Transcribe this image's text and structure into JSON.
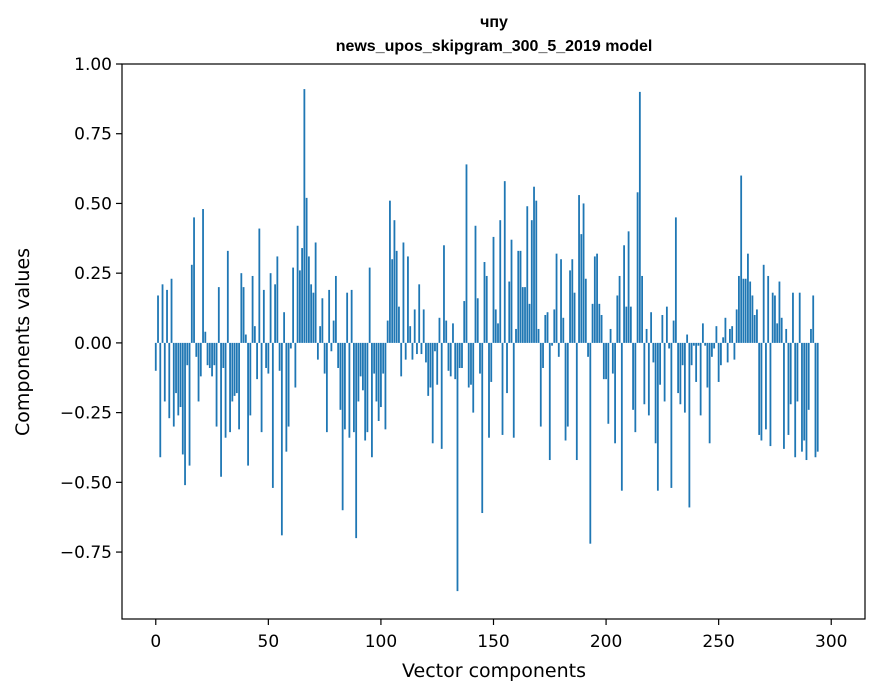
{
  "chart_data": {
    "type": "bar",
    "title": "чпу",
    "subtitle": "news_upos_skipgram_300_5_2019 model",
    "xlabel": "Vector components",
    "ylabel": "Components values",
    "xlim": [
      -15,
      315
    ],
    "ylim": [
      -0.99,
      1.0
    ],
    "xticks": [
      0,
      50,
      100,
      150,
      200,
      250,
      300
    ],
    "yticks": [
      1.0,
      0.75,
      0.5,
      0.25,
      0.0,
      -0.25,
      -0.5,
      -0.75
    ],
    "xtick_labels": [
      "0",
      "50",
      "100",
      "150",
      "200",
      "250",
      "300"
    ],
    "ytick_labels": [
      "1.00",
      "0.75",
      "0.50",
      "0.25",
      "0.00",
      "−0.25",
      "−0.50",
      "−0.75"
    ],
    "bar_color": "#1f77b4",
    "values": [
      -0.1,
      0.17,
      -0.41,
      0.21,
      -0.21,
      0.19,
      -0.27,
      0.23,
      -0.3,
      -0.18,
      -0.26,
      -0.23,
      -0.4,
      -0.51,
      -0.08,
      -0.44,
      0.28,
      0.45,
      -0.05,
      -0.21,
      -0.12,
      0.48,
      0.04,
      -0.08,
      -0.09,
      -0.12,
      -0.08,
      -0.3,
      0.2,
      -0.48,
      -0.09,
      -0.34,
      0.33,
      -0.32,
      -0.21,
      -0.19,
      -0.18,
      -0.31,
      0.25,
      0.2,
      0.03,
      -0.44,
      -0.26,
      0.24,
      0.06,
      -0.13,
      0.41,
      -0.32,
      0.19,
      -0.09,
      -0.11,
      0.25,
      -0.52,
      0.21,
      0.31,
      -0.1,
      -0.69,
      0.11,
      -0.39,
      -0.3,
      -0.02,
      0.27,
      -0.16,
      0.42,
      0.26,
      0.34,
      0.91,
      0.52,
      0.31,
      0.21,
      0.18,
      0.36,
      -0.06,
      0.06,
      0.16,
      -0.11,
      -0.32,
      0.19,
      -0.03,
      0.08,
      0.24,
      -0.09,
      -0.24,
      -0.6,
      -0.31,
      0.18,
      -0.34,
      0.19,
      -0.32,
      -0.7,
      -0.21,
      -0.12,
      -0.17,
      -0.35,
      -0.32,
      0.27,
      -0.41,
      -0.11,
      -0.21,
      -0.28,
      -0.23,
      -0.11,
      -0.31,
      0.08,
      0.51,
      0.3,
      0.44,
      0.33,
      0.13,
      -0.12,
      0.36,
      -0.06,
      0.31,
      0.06,
      -0.06,
      0.12,
      -0.04,
      0.21,
      -0.04,
      0.12,
      -0.07,
      -0.19,
      -0.16,
      -0.36,
      -0.03,
      -0.15,
      0.09,
      -0.38,
      0.35,
      0.08,
      -0.1,
      -0.12,
      0.07,
      -0.13,
      -0.89,
      -0.09,
      -0.09,
      0.15,
      0.64,
      -0.16,
      -0.15,
      -0.25,
      0.42,
      0.16,
      -0.11,
      -0.61,
      0.29,
      0.24,
      -0.34,
      -0.14,
      0.38,
      0.12,
      0.07,
      0.44,
      -0.33,
      0.58,
      -0.18,
      0.22,
      0.37,
      -0.34,
      0.05,
      0.33,
      0.33,
      0.2,
      0.2,
      0.49,
      0.14,
      0.44,
      0.56,
      0.51,
      0.05,
      -0.3,
      -0.09,
      0.1,
      0.11,
      -0.42,
      -0.01,
      0.12,
      0.32,
      -0.05,
      0.3,
      0.09,
      -0.35,
      -0.3,
      0.26,
      0.3,
      0.18,
      -0.42,
      0.53,
      0.39,
      0.5,
      0.23,
      -0.05,
      -0.72,
      0.14,
      0.31,
      0.32,
      0.14,
      0.1,
      -0.13,
      -0.13,
      -0.29,
      0.05,
      -0.11,
      -0.36,
      0.17,
      0.24,
      -0.53,
      0.35,
      0.13,
      0.4,
      0.13,
      -0.24,
      -0.32,
      0.54,
      0.9,
      0.24,
      -0.22,
      0.05,
      -0.26,
      0.11,
      -0.07,
      -0.36,
      -0.53,
      -0.15,
      0.1,
      -0.21,
      0.13,
      -0.02,
      -0.52,
      0.08,
      0.45,
      -0.18,
      -0.22,
      -0.08,
      -0.25,
      0.03,
      -0.59,
      -0.08,
      -0.01,
      -0.14,
      -0.01,
      -0.26,
      0.07,
      -0.01,
      -0.16,
      -0.36,
      -0.05,
      -0.02,
      0.06,
      -0.14,
      -0.08,
      0.02,
      0.09,
      -0.07,
      0.05,
      0.06,
      -0.06,
      0.12,
      0.24,
      0.6,
      0.23,
      0.23,
      0.32,
      0.22,
      0.17,
      0.1,
      0.12,
      -0.33,
      -0.35,
      0.28,
      -0.31,
      0.24,
      -0.37,
      0.18,
      0.17,
      0.07,
      0.22,
      0.09,
      -0.38,
      0.05,
      -0.33,
      -0.22,
      0.18,
      -0.41,
      -0.21,
      0.18,
      -0.39,
      -0.35,
      -0.42,
      -0.24,
      0.05,
      0.17,
      -0.41,
      -0.39
    ]
  }
}
